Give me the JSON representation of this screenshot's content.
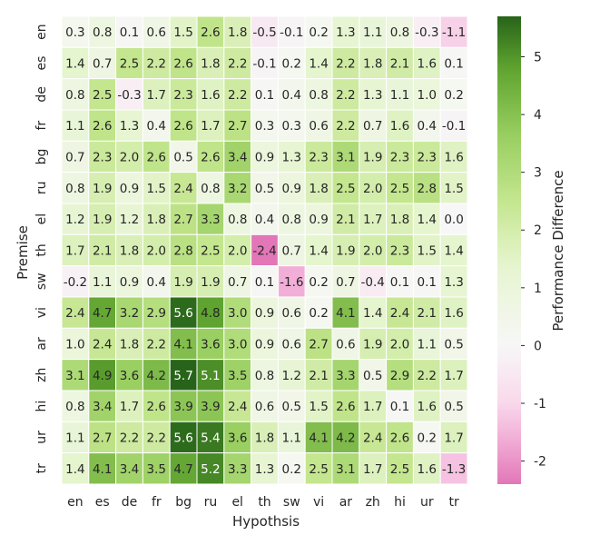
{
  "chart_data": {
    "type": "heatmap",
    "xlabel": "Hypothsis",
    "ylabel": "Premise",
    "colorbar_label": "Performance Difference",
    "x_categories": [
      "en",
      "es",
      "de",
      "fr",
      "bg",
      "ru",
      "el",
      "th",
      "sw",
      "vi",
      "ar",
      "zh",
      "hi",
      "ur",
      "tr"
    ],
    "y_categories": [
      "en",
      "es",
      "de",
      "fr",
      "bg",
      "ru",
      "el",
      "th",
      "sw",
      "vi",
      "ar",
      "zh",
      "hi",
      "ur",
      "tr"
    ],
    "values": [
      [
        "0.3",
        "0.8",
        "0.1",
        "0.6",
        "1.5",
        "2.6",
        "1.8",
        "-0.5",
        "-0.1",
        "0.2",
        "1.3",
        "1.1",
        "0.8",
        "-0.3",
        "-1.1"
      ],
      [
        "1.4",
        "0.7",
        "2.5",
        "2.2",
        "2.6",
        "1.8",
        "2.2",
        "-0.1",
        "0.2",
        "1.4",
        "2.2",
        "1.8",
        "2.1",
        "1.6",
        "0.1"
      ],
      [
        "0.8",
        "2.5",
        "-0.3",
        "1.7",
        "2.3",
        "1.6",
        "2.2",
        "0.1",
        "0.4",
        "0.8",
        "2.2",
        "1.3",
        "1.1",
        "1.0",
        "0.2"
      ],
      [
        "1.1",
        "2.6",
        "1.3",
        "0.4",
        "2.6",
        "1.7",
        "2.7",
        "0.3",
        "0.3",
        "0.6",
        "2.2",
        "0.7",
        "1.6",
        "0.4",
        "-0.1"
      ],
      [
        "0.7",
        "2.3",
        "2.0",
        "2.6",
        "0.5",
        "2.6",
        "3.4",
        "0.9",
        "1.3",
        "2.3",
        "3.1",
        "1.9",
        "2.3",
        "2.3",
        "1.6"
      ],
      [
        "0.8",
        "1.9",
        "0.9",
        "1.5",
        "2.4",
        "0.8",
        "3.2",
        "0.5",
        "0.9",
        "1.8",
        "2.5",
        "2.0",
        "2.5",
        "2.8",
        "1.5"
      ],
      [
        "1.2",
        "1.9",
        "1.2",
        "1.8",
        "2.7",
        "3.3",
        "0.8",
        "0.4",
        "0.8",
        "0.9",
        "2.1",
        "1.7",
        "1.8",
        "1.4",
        "0.0"
      ],
      [
        "1.7",
        "2.1",
        "1.8",
        "2.0",
        "2.8",
        "2.5",
        "2.0",
        "-2.4",
        "0.7",
        "1.4",
        "1.9",
        "2.0",
        "2.3",
        "1.5",
        "1.4"
      ],
      [
        "-0.2",
        "1.1",
        "0.9",
        "0.4",
        "1.9",
        "1.9",
        "0.7",
        "0.1",
        "-1.6",
        "0.2",
        "0.7",
        "-0.4",
        "0.1",
        "0.1",
        "1.3"
      ],
      [
        "2.4",
        "4.7",
        "3.2",
        "2.9",
        "5.6",
        "4.8",
        "3.0",
        "0.9",
        "0.6",
        "0.2",
        "4.1",
        "1.4",
        "2.4",
        "2.1",
        "1.6"
      ],
      [
        "1.0",
        "2.4",
        "1.8",
        "2.2",
        "4.1",
        "3.6",
        "3.0",
        "0.9",
        "0.6",
        "2.7",
        "0.6",
        "1.9",
        "2.0",
        "1.1",
        "0.5"
      ],
      [
        "3.1",
        "4.9",
        "3.6",
        "4.2",
        "5.7",
        "5.1",
        "3.5",
        "0.8",
        "1.2",
        "2.1",
        "3.3",
        "0.5",
        "2.9",
        "2.2",
        "1.7"
      ],
      [
        "0.8",
        "3.4",
        "1.7",
        "2.6",
        "3.9",
        "3.9",
        "2.4",
        "0.6",
        "0.5",
        "1.5",
        "2.6",
        "1.7",
        "0.1",
        "1.6",
        "0.5"
      ],
      [
        "1.1",
        "2.7",
        "2.2",
        "2.2",
        "5.6",
        "5.4",
        "3.6",
        "1.8",
        "1.1",
        "4.1",
        "4.2",
        "2.4",
        "2.6",
        "0.2",
        "1.7"
      ],
      [
        "1.4",
        "4.1",
        "3.4",
        "3.5",
        "4.7",
        "5.2",
        "3.3",
        "1.3",
        "0.2",
        "2.5",
        "3.1",
        "1.7",
        "2.5",
        "1.6",
        "-1.3"
      ]
    ],
    "color_range": [
      -2.4,
      5.7
    ],
    "colormap": "PiYG (diverging, centered at 0)",
    "colorbar_ticks": [
      "-2",
      "-1",
      "0",
      "1",
      "2",
      "3",
      "4",
      "5"
    ],
    "colorbar_tick_values": [
      -2,
      -1,
      0,
      1,
      2,
      3,
      4,
      5
    ],
    "grid": "white cell borders",
    "legend": "colorbar at right"
  }
}
